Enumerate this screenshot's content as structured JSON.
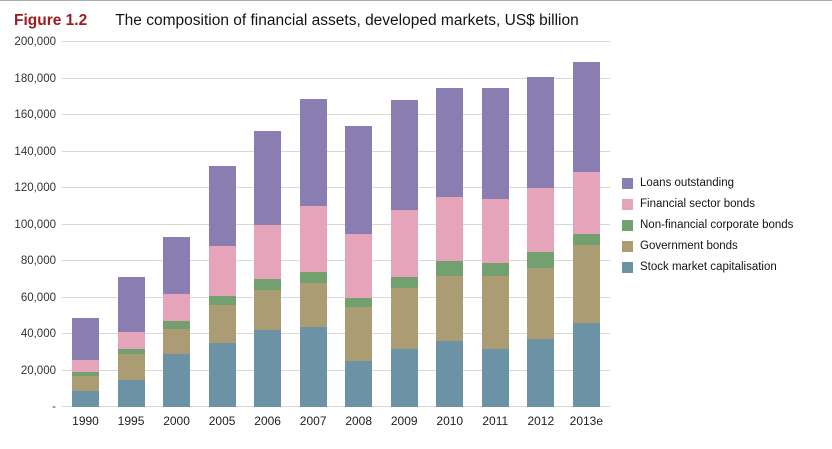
{
  "title": {
    "label": "Figure 1.2",
    "label_color": "#9e1b1e",
    "text": "The composition of financial assets, developed markets, US$ billion"
  },
  "chart_data": {
    "type": "bar",
    "subtype": "stacked",
    "title": "The composition of financial assets, developed markets, US$ billion",
    "figure_label": "Figure 1.2",
    "categories": [
      "1990",
      "1995",
      "2000",
      "2005",
      "2006",
      "2007",
      "2008",
      "2009",
      "2010",
      "2011",
      "2012",
      "2013e"
    ],
    "series": [
      {
        "name": "Stock market capitalisation",
        "color": "#6b92a5",
        "values": [
          9000,
          15000,
          29000,
          35000,
          42000,
          44000,
          25000,
          32000,
          36000,
          32000,
          37000,
          46000
        ]
      },
      {
        "name": "Government bonds",
        "color": "#ac9c74",
        "values": [
          8000,
          14000,
          14000,
          21000,
          22000,
          24000,
          30000,
          33000,
          36000,
          40000,
          39000,
          43000
        ]
      },
      {
        "name": "Non-financial corporate bonds",
        "color": "#72a06e",
        "values": [
          2000,
          3000,
          4000,
          5000,
          6000,
          6000,
          5000,
          6000,
          8000,
          7000,
          9000,
          6000
        ]
      },
      {
        "name": "Financial sector bonds",
        "color": "#e5a4b9",
        "values": [
          7000,
          9000,
          15000,
          27000,
          30000,
          36000,
          35000,
          37000,
          35000,
          35000,
          35000,
          34000
        ]
      },
      {
        "name": "Loans outstanding",
        "color": "#8a7db2",
        "values": [
          23000,
          30000,
          31000,
          44000,
          51000,
          59000,
          59000,
          60000,
          60000,
          61000,
          61000,
          60000
        ]
      }
    ],
    "ylim": [
      0,
      200000
    ],
    "ytick_step": 20000,
    "zero_tick_label": "-",
    "grid": true,
    "gridline_color": "#d8d8d8",
    "legend_position": "right",
    "legend_order": [
      "Loans outstanding",
      "Financial sector bonds",
      "Non-financial corporate bonds",
      "Government bonds",
      "Stock market capitalisation"
    ]
  }
}
